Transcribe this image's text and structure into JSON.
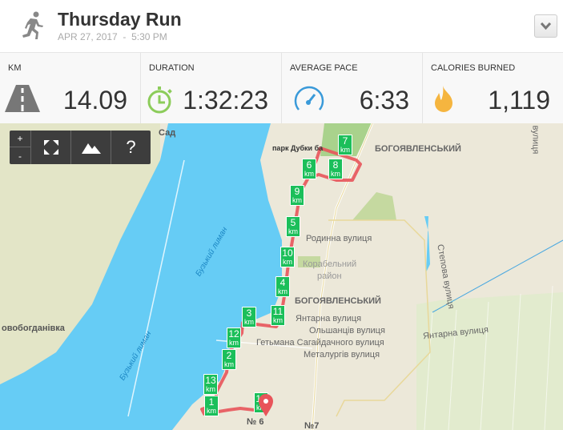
{
  "header": {
    "title": "Thursday Run",
    "date": "APR 27, 2017",
    "separator": "-",
    "time": "5:30 PM",
    "activity_icon": "runner-icon",
    "menu_icon": "chevron-down-icon"
  },
  "stats": [
    {
      "label": "KM",
      "value": "14.09",
      "icon": "road-icon",
      "color": "#777777"
    },
    {
      "label": "DURATION",
      "value": "1:32:23",
      "icon": "stopwatch-icon",
      "color": "#8ccc5a"
    },
    {
      "label": "AVERAGE PACE",
      "value": "6:33",
      "icon": "speedometer-icon",
      "color": "#3a9ad9"
    },
    {
      "label": "CALORIES BURNED",
      "value": "1,119",
      "icon": "flame-icon",
      "color": "#f5b53f"
    }
  ],
  "map": {
    "controls": {
      "zoom_in": "+",
      "zoom_out": "-",
      "fullscreen_icon": "fullscreen-icon",
      "terrain_icon": "mountain-icon",
      "help": "?"
    },
    "route_color": "#e8545a",
    "marker_color": "#1bbf5a",
    "marker_unit": "km",
    "markers": [
      "1",
      "2",
      "3",
      "4",
      "5",
      "6",
      "7",
      "8",
      "9",
      "10",
      "11",
      "12",
      "13",
      "14"
    ],
    "labels": {
      "sad": "Сад",
      "park": "парк Дубки ба",
      "district1": "БОГОЯВЛЕНСЬКИЙ",
      "district2": "БОГОЯВЛЕНСЬКИЙ",
      "rodynna": "Родинна вулиця",
      "korabelnyi": "Корабельний",
      "raion": "район",
      "yantarna1": "Янтарна вулиця",
      "olshantsiv": "Ольшанців вулиця",
      "hetmana": "Гетьмана Сагайдачного вулиця",
      "metalurhiv": "Металургів вулиця",
      "yantarna2": "Янтарна вулиця",
      "stepova": "Степова вулиця",
      "vulytsia": "вулиця",
      "novobohdanivka": "овобогданівка",
      "lyman1": "Бузький лиман",
      "lyman2": "Бузький лиман",
      "no6": "№ 6",
      "no7": "№7"
    }
  }
}
